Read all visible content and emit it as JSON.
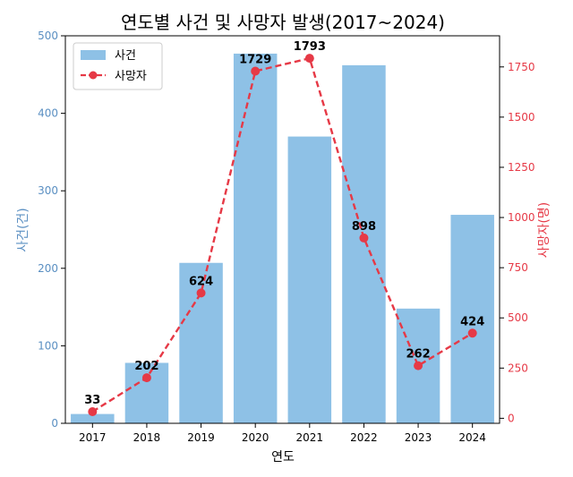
{
  "chart_data": {
    "type": "bar",
    "title": "연도별 사건 및 사망자 발생(2017~2024)",
    "xlabel": "연도",
    "ylabel_left": "사건(건)",
    "ylabel_right": "사망자(명)",
    "categories": [
      "2017",
      "2018",
      "2019",
      "2020",
      "2021",
      "2022",
      "2023",
      "2024"
    ],
    "series": [
      {
        "name": "사건",
        "type": "bar",
        "axis": "left",
        "values": [
          12,
          78,
          207,
          477,
          370,
          462,
          148,
          269
        ]
      },
      {
        "name": "사망자",
        "type": "line",
        "axis": "right",
        "values": [
          33,
          202,
          624,
          1729,
          1793,
          898,
          262,
          424
        ],
        "data_labels": [
          "33",
          "202",
          "624",
          "1729",
          "1793",
          "898",
          "262",
          "424"
        ]
      }
    ],
    "ylim_left": [
      0,
      500
    ],
    "yticks_left": [
      "0",
      "100",
      "200",
      "300",
      "400",
      "500"
    ],
    "ylim_right": [
      -25,
      1905
    ],
    "yticks_right": [
      "0",
      "250",
      "500",
      "750",
      "1000",
      "1250",
      "1500",
      "1750"
    ],
    "legend": "upper-left",
    "grid": false,
    "colors": {
      "bar": "#8ec1e6",
      "line": "#e63946",
      "left_axis": "#5a8fc2",
      "right_axis": "#e63946",
      "text": "#000000"
    }
  }
}
